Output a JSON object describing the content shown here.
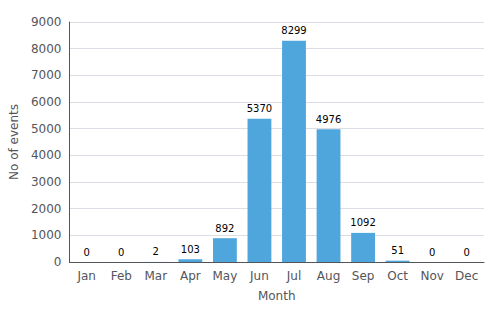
{
  "chart_data": {
    "type": "bar",
    "categories": [
      "Jan",
      "Feb",
      "Mar",
      "Apr",
      "May",
      "Jun",
      "Jul",
      "Aug",
      "Sep",
      "Oct",
      "Nov",
      "Dec"
    ],
    "values": [
      0,
      0,
      2,
      103,
      892,
      5370,
      8299,
      4976,
      1092,
      51,
      0,
      0
    ],
    "color": "#4ea6dc",
    "xlabel": "Month",
    "ylabel": "No of events",
    "ylim": [
      0,
      9000
    ],
    "yticks": [
      0,
      1000,
      2000,
      3000,
      4000,
      5000,
      6000,
      7000,
      8000,
      9000
    ],
    "grid": true,
    "data_labels": true
  }
}
